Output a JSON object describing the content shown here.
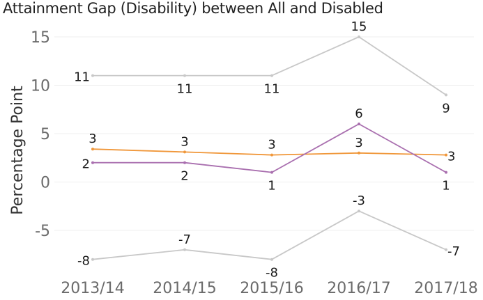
{
  "chart_data": {
    "type": "line",
    "title": "Attainment Gap (Disability) between  All and Disabled",
    "xlabel": "",
    "ylabel": "Percentage Point",
    "categories": [
      "2013/14",
      "2014/15",
      "2015/16",
      "2016/17",
      "2017/18"
    ],
    "ylim": [
      -9,
      15.5
    ],
    "yticks": [
      15,
      10,
      5,
      0,
      -5
    ],
    "grid": true,
    "legend": "none",
    "series": [
      {
        "color": "#c8c8c8",
        "values": [
          11,
          11,
          11,
          15,
          9
        ]
      },
      {
        "color": "#f0973a",
        "values": [
          3.4,
          3.1,
          2.8,
          3.0,
          2.8
        ],
        "labels": [
          "3",
          "3",
          "3",
          "3",
          "3"
        ]
      },
      {
        "color": "#a96faf",
        "values": [
          2,
          2,
          1,
          6,
          1
        ]
      },
      {
        "color": "#c8c8c8",
        "values": [
          -8,
          -7,
          -8,
          -3,
          -7
        ]
      }
    ]
  }
}
